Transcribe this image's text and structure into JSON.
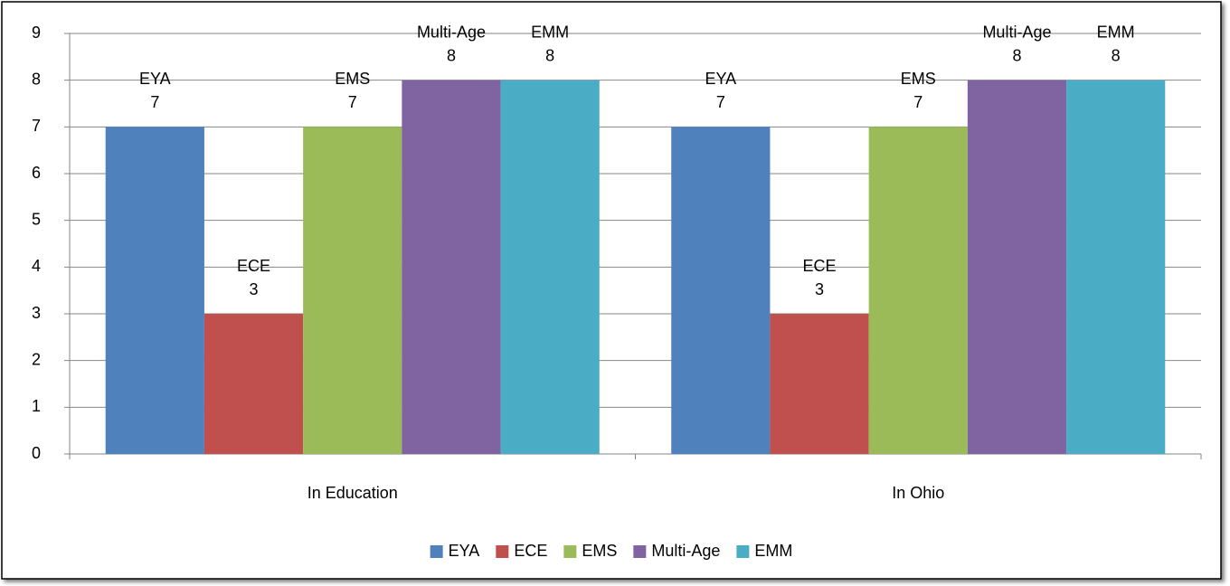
{
  "chart_data": {
    "type": "bar",
    "categories": [
      "In Education",
      "In Ohio"
    ],
    "series": [
      {
        "name": "EYA",
        "color": "#4f81bd",
        "values": [
          7,
          7
        ]
      },
      {
        "name": "ECE",
        "color": "#c0504d",
        "values": [
          3,
          3
        ]
      },
      {
        "name": "EMS",
        "color": "#9bbb59",
        "values": [
          7,
          7
        ]
      },
      {
        "name": "Multi-Age",
        "color": "#8064a2",
        "values": [
          8,
          8
        ]
      },
      {
        "name": "EMM",
        "color": "#4bacc6",
        "values": [
          8,
          8
        ]
      }
    ],
    "ylim": [
      0,
      9
    ],
    "yticks": [
      0,
      1,
      2,
      3,
      4,
      5,
      6,
      7,
      8,
      9
    ],
    "grid": true,
    "legend": "bottom"
  }
}
